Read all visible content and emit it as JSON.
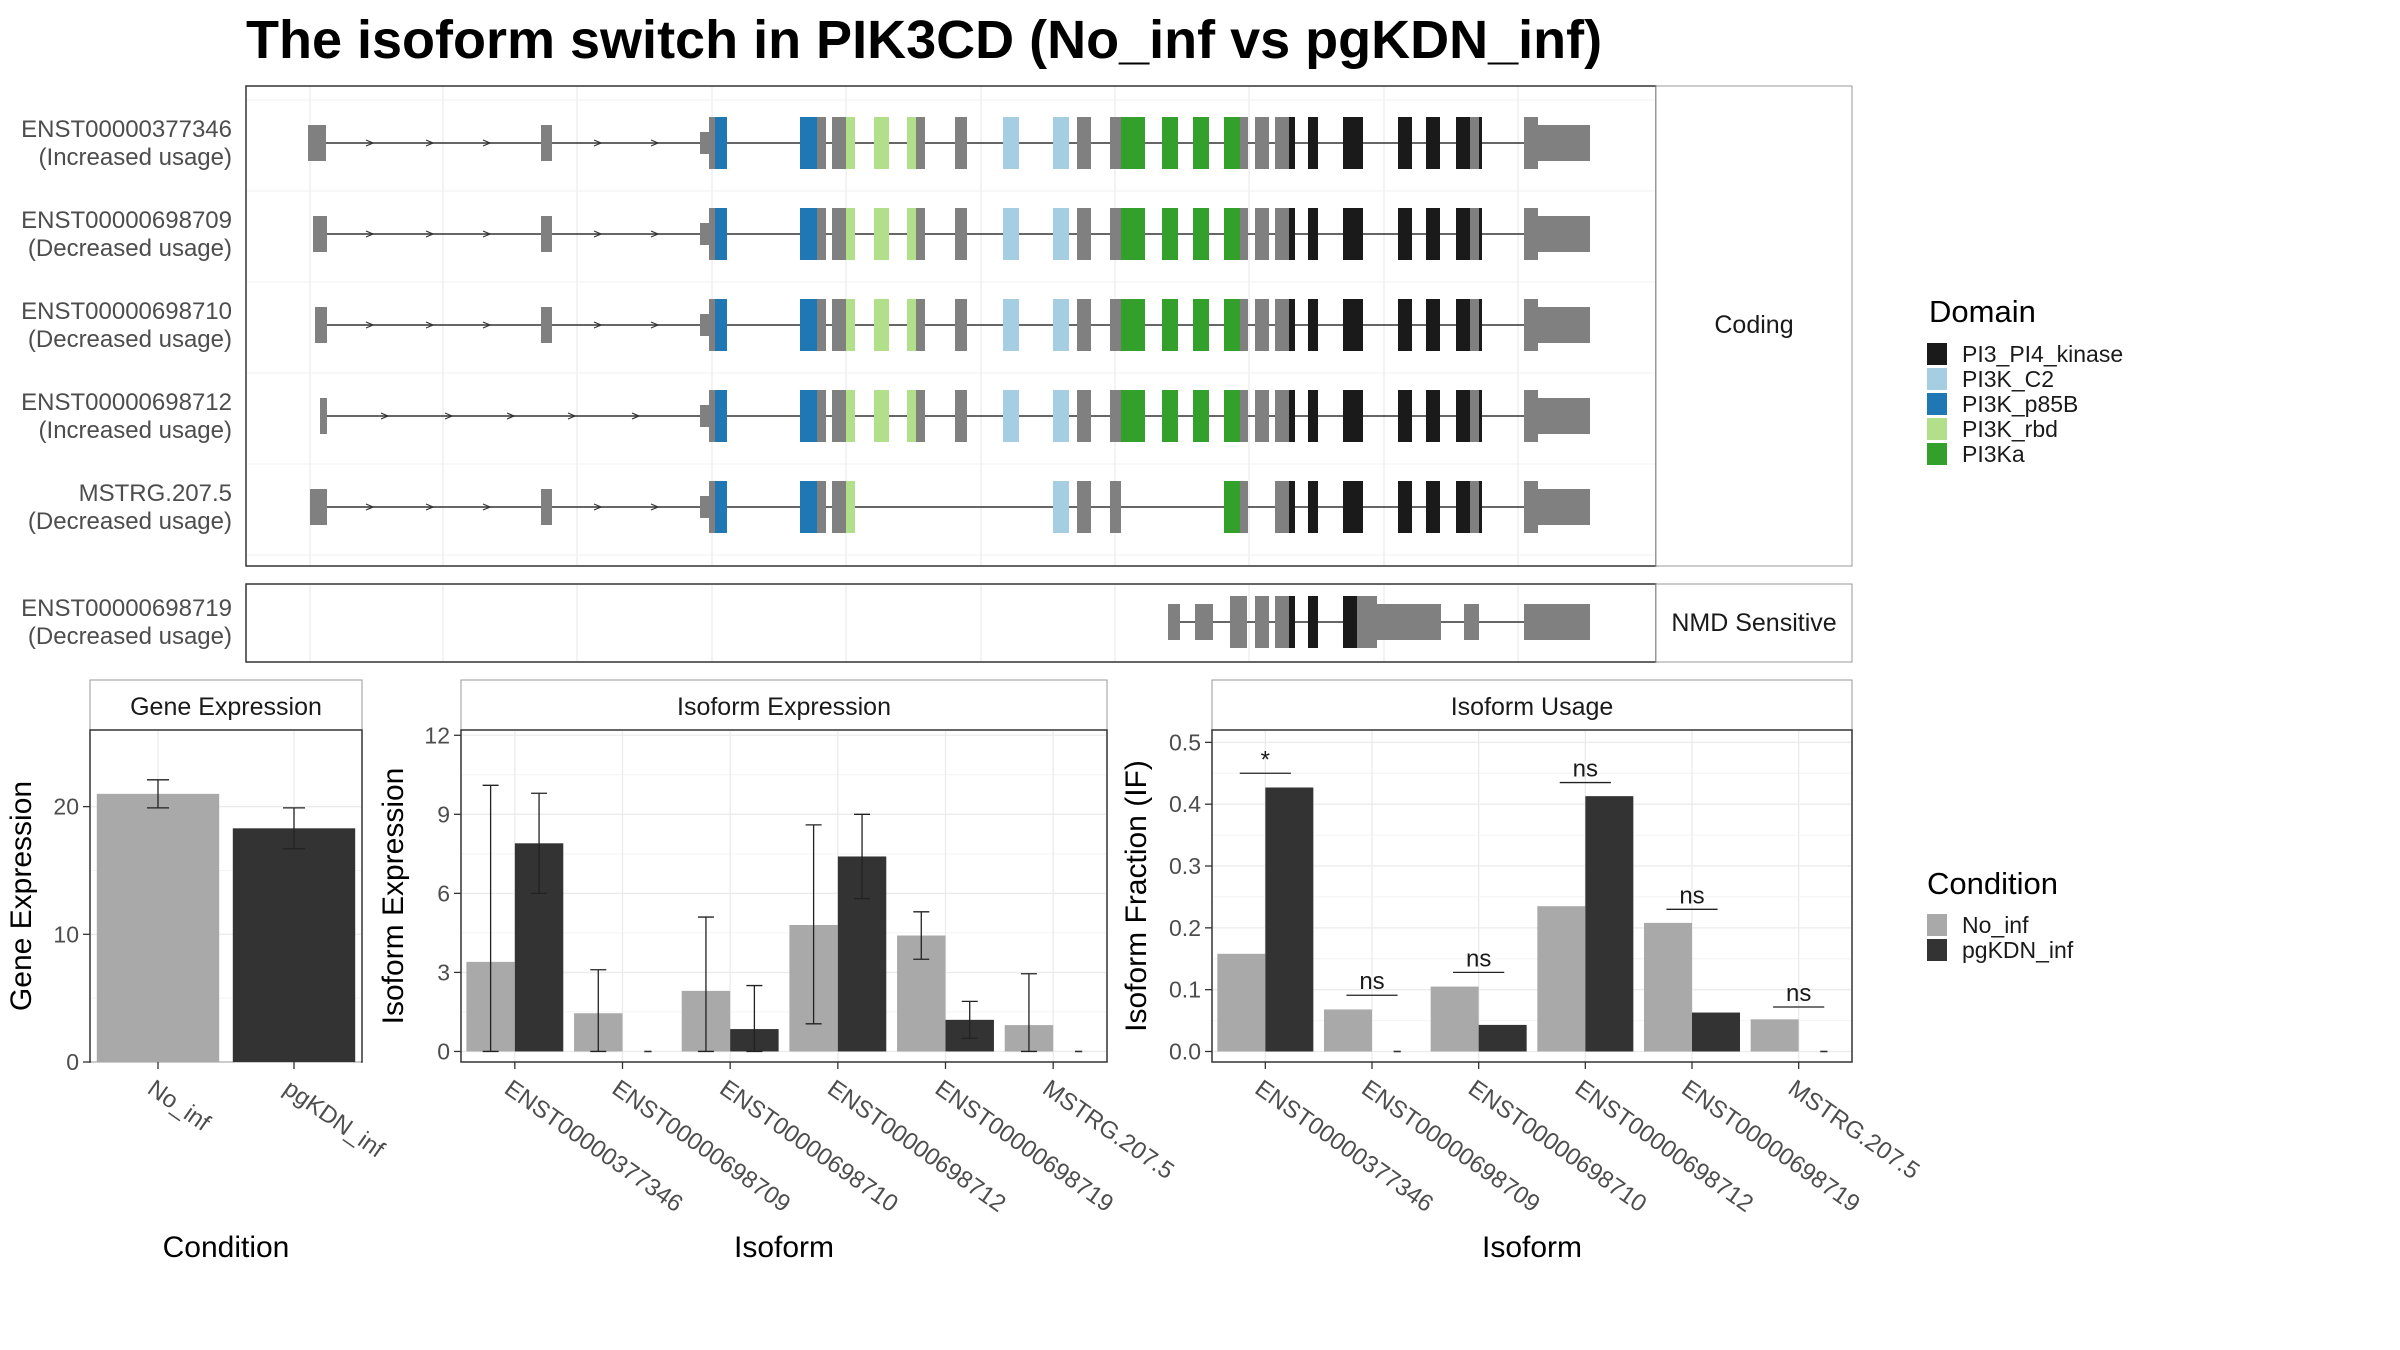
{
  "title": "The isoform switch in PIK3CD (No_inf vs pgKDN_inf)",
  "colors": {
    "PI3_PI4_kinase": "#1a1a1a",
    "PI3K_C2": "#a6cee3",
    "PI3K_p85B": "#1f78b4",
    "PI3K_rbd": "#b2df8a",
    "PI3Ka": "#33a02c",
    "non_domain": "#808080",
    "No_inf": "#a9a9a9",
    "pgKDN_inf": "#333333"
  },
  "transcripts": {
    "coding_label": "Coding",
    "nmd_label": "NMD Sensitive",
    "coding": [
      {
        "id": "ENST00000377346",
        "usage": "(Increased usage)"
      },
      {
        "id": "ENST00000698709",
        "usage": "(Decreased usage)"
      },
      {
        "id": "ENST00000698710",
        "usage": "(Decreased usage)"
      },
      {
        "id": "ENST00000698712",
        "usage": "(Increased usage)"
      },
      {
        "id": "MSTRG.207.5",
        "usage": "(Decreased usage)"
      }
    ],
    "nmd": [
      {
        "id": "ENST00000698719",
        "usage": "(Decreased usage)"
      }
    ]
  },
  "legends": {
    "domain_title": "Domain",
    "domains": [
      {
        "name": "PI3_PI4_kinase",
        "color": "#1a1a1a"
      },
      {
        "name": "PI3K_C2",
        "color": "#a6cee3"
      },
      {
        "name": "PI3K_p85B",
        "color": "#1f78b4"
      },
      {
        "name": "PI3K_rbd",
        "color": "#b2df8a"
      },
      {
        "name": "PI3Ka",
        "color": "#33a02c"
      }
    ],
    "condition_title": "Condition",
    "conditions": [
      {
        "name": "No_inf",
        "color": "#a9a9a9"
      },
      {
        "name": "pgKDN_inf",
        "color": "#333333"
      }
    ]
  },
  "chart_data": [
    {
      "type": "bar",
      "title": "Gene Expression",
      "xlabel": "Condition",
      "ylabel": "Gene Expression",
      "categories": [
        "No_inf",
        "pgKDN_inf"
      ],
      "values": [
        21.0,
        18.3
      ],
      "error_low": [
        19.9,
        16.7
      ],
      "error_high": [
        22.1,
        19.9
      ],
      "ylim": [
        0,
        26
      ],
      "yticks": [
        0,
        10,
        20
      ],
      "grid": true
    },
    {
      "type": "bar",
      "title": "Isoform Expression",
      "xlabel": "Isoform",
      "ylabel": "Isoform Expression",
      "categories": [
        "ENST00000377346",
        "ENST00000698709",
        "ENST00000698710",
        "ENST00000698712",
        "ENST00000698719",
        "MSTRG.207.5"
      ],
      "series": [
        {
          "name": "No_inf",
          "values": [
            3.4,
            1.45,
            2.3,
            4.8,
            4.4,
            1.0
          ],
          "error_low": [
            0,
            0,
            0,
            1.05,
            3.5,
            0
          ],
          "error_high": [
            10.1,
            3.1,
            5.1,
            8.6,
            5.3,
            2.95
          ]
        },
        {
          "name": "pgKDN_inf",
          "values": [
            7.9,
            0.0,
            0.85,
            7.4,
            1.2,
            0.0
          ],
          "error_low": [
            6.0,
            0,
            0,
            5.8,
            0.5,
            0
          ],
          "error_high": [
            9.8,
            0,
            2.5,
            9.0,
            1.9,
            0
          ]
        }
      ],
      "ylim": [
        -0.4,
        12.2
      ],
      "yticks": [
        0,
        3,
        6,
        9,
        12
      ],
      "grid": true
    },
    {
      "type": "bar",
      "title": "Isoform Usage",
      "xlabel": "Isoform",
      "ylabel": "Isoform Fraction (IF)",
      "categories": [
        "ENST00000377346",
        "ENST00000698709",
        "ENST00000698710",
        "ENST00000698712",
        "ENST00000698719",
        "MSTRG.207.5"
      ],
      "series": [
        {
          "name": "No_inf",
          "values": [
            0.158,
            0.068,
            0.105,
            0.235,
            0.208,
            0.052
          ]
        },
        {
          "name": "pgKDN_inf",
          "values": [
            0.427,
            0.0,
            0.043,
            0.413,
            0.063,
            0.0
          ]
        }
      ],
      "significance": [
        "*",
        "ns",
        "ns",
        "ns",
        "ns",
        "ns"
      ],
      "sig_heights": [
        0.45,
        0.091,
        0.128,
        0.435,
        0.23,
        0.072
      ],
      "ylim": [
        -0.017,
        0.52
      ],
      "yticks": [
        0.0,
        0.1,
        0.2,
        0.3,
        0.4,
        0.5
      ],
      "ytick_labels": [
        "0.0",
        "0.1",
        "0.2",
        "0.3",
        "0.4",
        "0.5"
      ],
      "grid": true
    }
  ]
}
